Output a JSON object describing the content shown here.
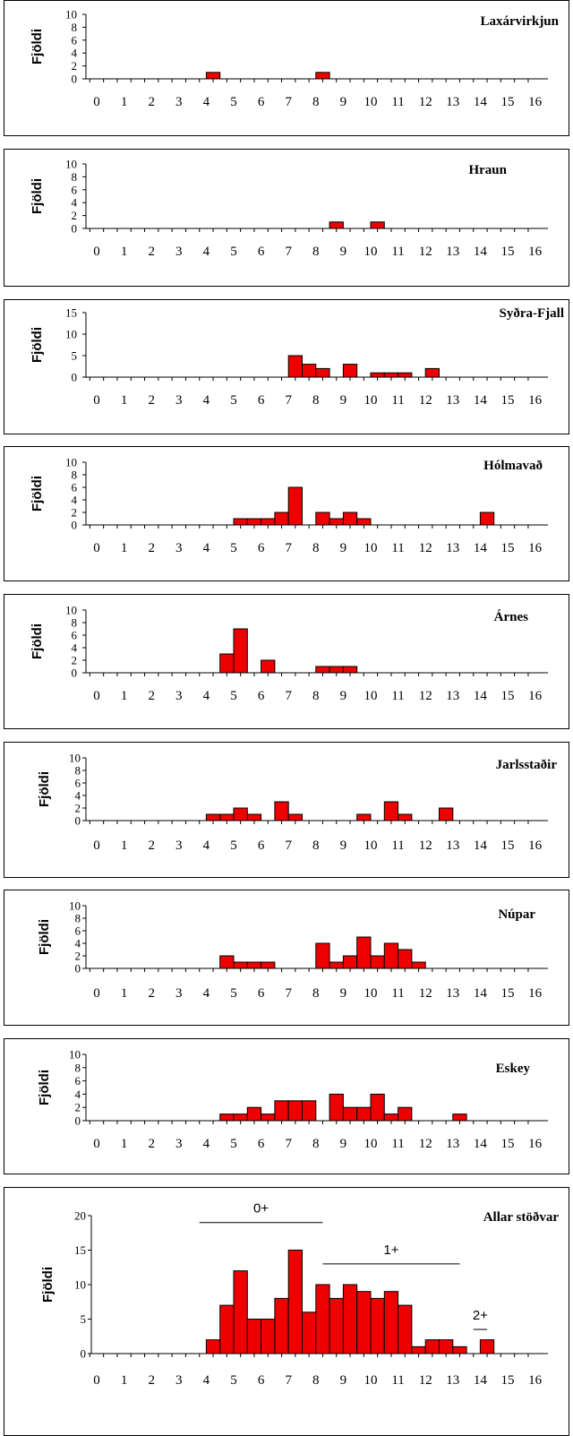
{
  "chart_data": [
    {
      "type": "bar",
      "title": "Laxárvirkjun",
      "ylabel": "Fjöldi",
      "ylim": [
        0,
        10
      ],
      "yticks": [
        0,
        2,
        4,
        6,
        8,
        10
      ],
      "xlim": [
        0,
        16
      ],
      "xticks": [
        0,
        1,
        2,
        3,
        4,
        5,
        6,
        7,
        8,
        9,
        10,
        11,
        12,
        13,
        14,
        15,
        16
      ],
      "bin_width": 0.5,
      "bars": [
        {
          "x": 4.0,
          "y": 1
        },
        {
          "x": 8.0,
          "y": 1
        }
      ]
    },
    {
      "type": "bar",
      "title": "Hraun",
      "ylabel": "Fjöldi",
      "ylim": [
        0,
        10
      ],
      "yticks": [
        0,
        2,
        4,
        6,
        8,
        10
      ],
      "xlim": [
        0,
        16
      ],
      "xticks": [
        0,
        1,
        2,
        3,
        4,
        5,
        6,
        7,
        8,
        9,
        10,
        11,
        12,
        13,
        14,
        15,
        16
      ],
      "bin_width": 0.5,
      "bars": [
        {
          "x": 8.5,
          "y": 1
        },
        {
          "x": 10.0,
          "y": 1
        }
      ]
    },
    {
      "type": "bar",
      "title": "Syðra-Fjall",
      "ylabel": "Fjöldi",
      "ylim": [
        0,
        15
      ],
      "yticks": [
        0,
        5,
        10,
        15
      ],
      "xlim": [
        0,
        16
      ],
      "xticks": [
        0,
        1,
        2,
        3,
        4,
        5,
        6,
        7,
        8,
        9,
        10,
        11,
        12,
        13,
        14,
        15,
        16
      ],
      "bin_width": 0.5,
      "bars": [
        {
          "x": 7.0,
          "y": 5
        },
        {
          "x": 7.5,
          "y": 3
        },
        {
          "x": 8.0,
          "y": 2
        },
        {
          "x": 9.0,
          "y": 3
        },
        {
          "x": 10.0,
          "y": 1
        },
        {
          "x": 10.5,
          "y": 1
        },
        {
          "x": 11.0,
          "y": 1
        },
        {
          "x": 12.0,
          "y": 2
        }
      ]
    },
    {
      "type": "bar",
      "title": "Hólmavað",
      "ylabel": "Fjöldi",
      "ylim": [
        0,
        10
      ],
      "yticks": [
        0,
        2,
        4,
        6,
        8,
        10
      ],
      "xlim": [
        0,
        16
      ],
      "xticks": [
        0,
        1,
        2,
        3,
        4,
        5,
        6,
        7,
        8,
        9,
        10,
        11,
        12,
        13,
        14,
        15,
        16
      ],
      "bin_width": 0.5,
      "bars": [
        {
          "x": 5.0,
          "y": 1
        },
        {
          "x": 5.5,
          "y": 1
        },
        {
          "x": 6.0,
          "y": 1
        },
        {
          "x": 6.5,
          "y": 2
        },
        {
          "x": 7.0,
          "y": 6
        },
        {
          "x": 8.0,
          "y": 2
        },
        {
          "x": 8.5,
          "y": 1
        },
        {
          "x": 9.0,
          "y": 2
        },
        {
          "x": 9.5,
          "y": 1
        },
        {
          "x": 14.0,
          "y": 2
        }
      ]
    },
    {
      "type": "bar",
      "title": "Árnes",
      "ylabel": "Fjöldi",
      "ylim": [
        0,
        10
      ],
      "yticks": [
        0,
        2,
        4,
        6,
        8,
        10
      ],
      "xlim": [
        0,
        16
      ],
      "xticks": [
        0,
        1,
        2,
        3,
        4,
        5,
        6,
        7,
        8,
        9,
        10,
        11,
        12,
        13,
        14,
        15,
        16
      ],
      "bin_width": 0.5,
      "bars": [
        {
          "x": 4.5,
          "y": 3
        },
        {
          "x": 5.0,
          "y": 7
        },
        {
          "x": 6.0,
          "y": 2
        },
        {
          "x": 8.0,
          "y": 1
        },
        {
          "x": 8.5,
          "y": 1
        },
        {
          "x": 9.0,
          "y": 1
        }
      ]
    },
    {
      "type": "bar",
      "title": "Jarlsstaðir",
      "ylabel": "Fjöldi",
      "ylim": [
        0,
        10
      ],
      "yticks": [
        0,
        2,
        4,
        6,
        8,
        10
      ],
      "xlim": [
        0,
        16
      ],
      "xticks": [
        0,
        1,
        2,
        3,
        4,
        5,
        6,
        7,
        8,
        9,
        10,
        11,
        12,
        13,
        14,
        15,
        16
      ],
      "bin_width": 0.5,
      "bars": [
        {
          "x": 4.0,
          "y": 1
        },
        {
          "x": 4.5,
          "y": 1
        },
        {
          "x": 5.0,
          "y": 2
        },
        {
          "x": 5.5,
          "y": 1
        },
        {
          "x": 6.5,
          "y": 3
        },
        {
          "x": 7.0,
          "y": 1
        },
        {
          "x": 9.5,
          "y": 1
        },
        {
          "x": 10.5,
          "y": 3
        },
        {
          "x": 11.0,
          "y": 1
        },
        {
          "x": 12.5,
          "y": 2
        }
      ]
    },
    {
      "type": "bar",
      "title": "Núpar",
      "ylabel": "Fjöldi",
      "ylim": [
        0,
        10
      ],
      "yticks": [
        0,
        2,
        4,
        6,
        8,
        10
      ],
      "xlim": [
        0,
        16
      ],
      "xticks": [
        0,
        1,
        2,
        3,
        4,
        5,
        6,
        7,
        8,
        9,
        10,
        11,
        12,
        13,
        14,
        15,
        16
      ],
      "bin_width": 0.5,
      "bars": [
        {
          "x": 4.5,
          "y": 2
        },
        {
          "x": 5.0,
          "y": 1
        },
        {
          "x": 5.5,
          "y": 1
        },
        {
          "x": 6.0,
          "y": 1
        },
        {
          "x": 8.0,
          "y": 4
        },
        {
          "x": 8.5,
          "y": 1
        },
        {
          "x": 9.0,
          "y": 2
        },
        {
          "x": 9.5,
          "y": 5
        },
        {
          "x": 10.0,
          "y": 2
        },
        {
          "x": 10.5,
          "y": 4
        },
        {
          "x": 11.0,
          "y": 3
        },
        {
          "x": 11.5,
          "y": 1
        }
      ]
    },
    {
      "type": "bar",
      "title": "Eskey",
      "ylabel": "Fjöldi",
      "ylim": [
        0,
        10
      ],
      "yticks": [
        0,
        2,
        4,
        6,
        8,
        10
      ],
      "xlim": [
        0,
        16
      ],
      "xticks": [
        0,
        1,
        2,
        3,
        4,
        5,
        6,
        7,
        8,
        9,
        10,
        11,
        12,
        13,
        14,
        15,
        16
      ],
      "bin_width": 0.5,
      "bars": [
        {
          "x": 4.5,
          "y": 1
        },
        {
          "x": 5.0,
          "y": 1
        },
        {
          "x": 5.5,
          "y": 2
        },
        {
          "x": 6.0,
          "y": 1
        },
        {
          "x": 6.5,
          "y": 3
        },
        {
          "x": 7.0,
          "y": 3
        },
        {
          "x": 7.5,
          "y": 3
        },
        {
          "x": 8.5,
          "y": 4
        },
        {
          "x": 9.0,
          "y": 2
        },
        {
          "x": 9.5,
          "y": 2
        },
        {
          "x": 10.0,
          "y": 4
        },
        {
          "x": 10.5,
          "y": 1
        },
        {
          "x": 11.0,
          "y": 2
        },
        {
          "x": 13.0,
          "y": 1
        }
      ]
    },
    {
      "type": "bar",
      "title": "Allar stöðvar",
      "ylabel": "Fjöldi",
      "ylim": [
        0,
        20
      ],
      "yticks": [
        0,
        5,
        10,
        15,
        20
      ],
      "xlim": [
        0,
        16
      ],
      "xticks": [
        0,
        1,
        2,
        3,
        4,
        5,
        6,
        7,
        8,
        9,
        10,
        11,
        12,
        13,
        14,
        15,
        16
      ],
      "bin_width": 0.5,
      "bars": [
        {
          "x": 4.0,
          "y": 2
        },
        {
          "x": 4.5,
          "y": 7
        },
        {
          "x": 5.0,
          "y": 12
        },
        {
          "x": 5.5,
          "y": 5
        },
        {
          "x": 6.0,
          "y": 5
        },
        {
          "x": 6.5,
          "y": 8
        },
        {
          "x": 7.0,
          "y": 15
        },
        {
          "x": 7.5,
          "y": 6
        },
        {
          "x": 8.0,
          "y": 10
        },
        {
          "x": 8.5,
          "y": 8
        },
        {
          "x": 9.0,
          "y": 10
        },
        {
          "x": 9.5,
          "y": 9
        },
        {
          "x": 10.0,
          "y": 8
        },
        {
          "x": 10.5,
          "y": 9
        },
        {
          "x": 11.0,
          "y": 7
        },
        {
          "x": 11.5,
          "y": 1
        },
        {
          "x": 12.0,
          "y": 2
        },
        {
          "x": 12.5,
          "y": 2
        },
        {
          "x": 13.0,
          "y": 1
        },
        {
          "x": 14.0,
          "y": 2
        }
      ],
      "annotations": [
        {
          "label": "0+",
          "x_start": 3.75,
          "x_end": 8.25,
          "y": 19
        },
        {
          "label": "1+",
          "x_start": 8.25,
          "x_end": 13.25,
          "y": 13
        },
        {
          "label": "2+",
          "x_start": 13.75,
          "x_end": 14.25,
          "y": 3.5
        }
      ]
    }
  ]
}
